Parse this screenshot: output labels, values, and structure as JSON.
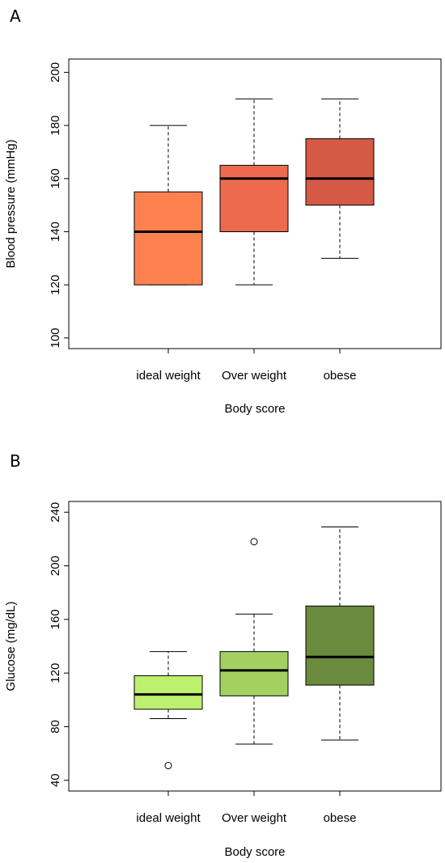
{
  "panels": [
    {
      "letter": "A",
      "chart_data": {
        "type": "boxplot",
        "xlabel": "Body score",
        "ylabel": "Blood pressure (mmHg)",
        "categories": [
          "ideal weight",
          "Over weight",
          "obese"
        ],
        "ylim": [
          96,
          205
        ],
        "yticks": [
          100,
          120,
          140,
          160,
          180,
          200
        ],
        "boxes": [
          {
            "category": "ideal weight",
            "whisker_low": 120,
            "q1": 120,
            "median": 140,
            "q3": 155,
            "whisker_high": 180,
            "outliers": [],
            "color": "#fe8150"
          },
          {
            "category": "Over weight",
            "whisker_low": 120,
            "q1": 140,
            "median": 160,
            "q3": 165,
            "whisker_high": 190,
            "outliers": [],
            "color": "#ec6b4e"
          },
          {
            "category": "obese",
            "whisker_low": 130,
            "q1": 150,
            "median": 160,
            "q3": 175,
            "whisker_high": 190,
            "outliers": [],
            "color": "#d45a45"
          }
        ]
      }
    },
    {
      "letter": "B",
      "chart_data": {
        "type": "boxplot",
        "xlabel": "Body score",
        "ylabel": "Glucose (mg/dL)",
        "categories": [
          "ideal weight",
          "Over weight",
          "obese"
        ],
        "ylim": [
          32,
          248
        ],
        "yticks": [
          40,
          80,
          120,
          160,
          200,
          240
        ],
        "boxes": [
          {
            "category": "ideal weight",
            "whisker_low": 86,
            "q1": 93,
            "median": 104,
            "q3": 118,
            "whisker_high": 136,
            "outliers": [
              51
            ],
            "color": "#bdf06f"
          },
          {
            "category": "Over weight",
            "whisker_low": 67,
            "q1": 103,
            "median": 122,
            "q3": 136,
            "whisker_high": 164,
            "outliers": [
              218
            ],
            "color": "#a3d161"
          },
          {
            "category": "obese",
            "whisker_low": 70,
            "q1": 111,
            "median": 132,
            "q3": 170,
            "whisker_high": 229,
            "outliers": [],
            "color": "#6a8a3d"
          }
        ]
      }
    }
  ]
}
